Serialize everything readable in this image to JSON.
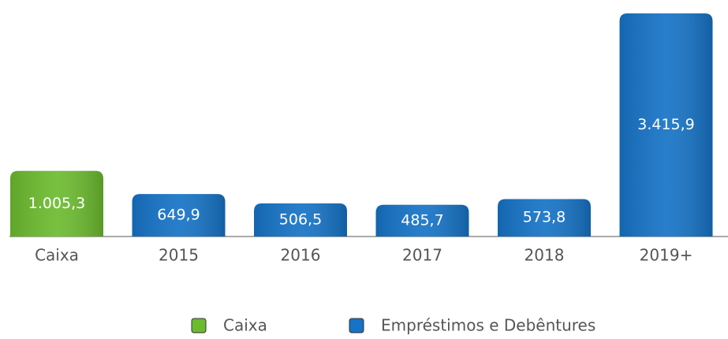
{
  "chart_data": {
    "type": "bar",
    "categories": [
      "Caixa",
      "2015",
      "2016",
      "2017",
      "2018",
      "2019+"
    ],
    "series": [
      {
        "name": "Caixa",
        "color": "#6cbb2f",
        "values": [
          1005.3,
          null,
          null,
          null,
          null,
          null
        ],
        "value_labels": [
          "1.005,3",
          null,
          null,
          null,
          null,
          null
        ]
      },
      {
        "name": "Empréstimos e Debêntures",
        "color": "#1673c6",
        "values": [
          null,
          649.9,
          506.5,
          485.7,
          573.8,
          3415.9
        ],
        "value_labels": [
          null,
          "649,9",
          "506,5",
          "485,7",
          "573,8",
          "3.415,9"
        ]
      }
    ],
    "legend": "bottom"
  }
}
